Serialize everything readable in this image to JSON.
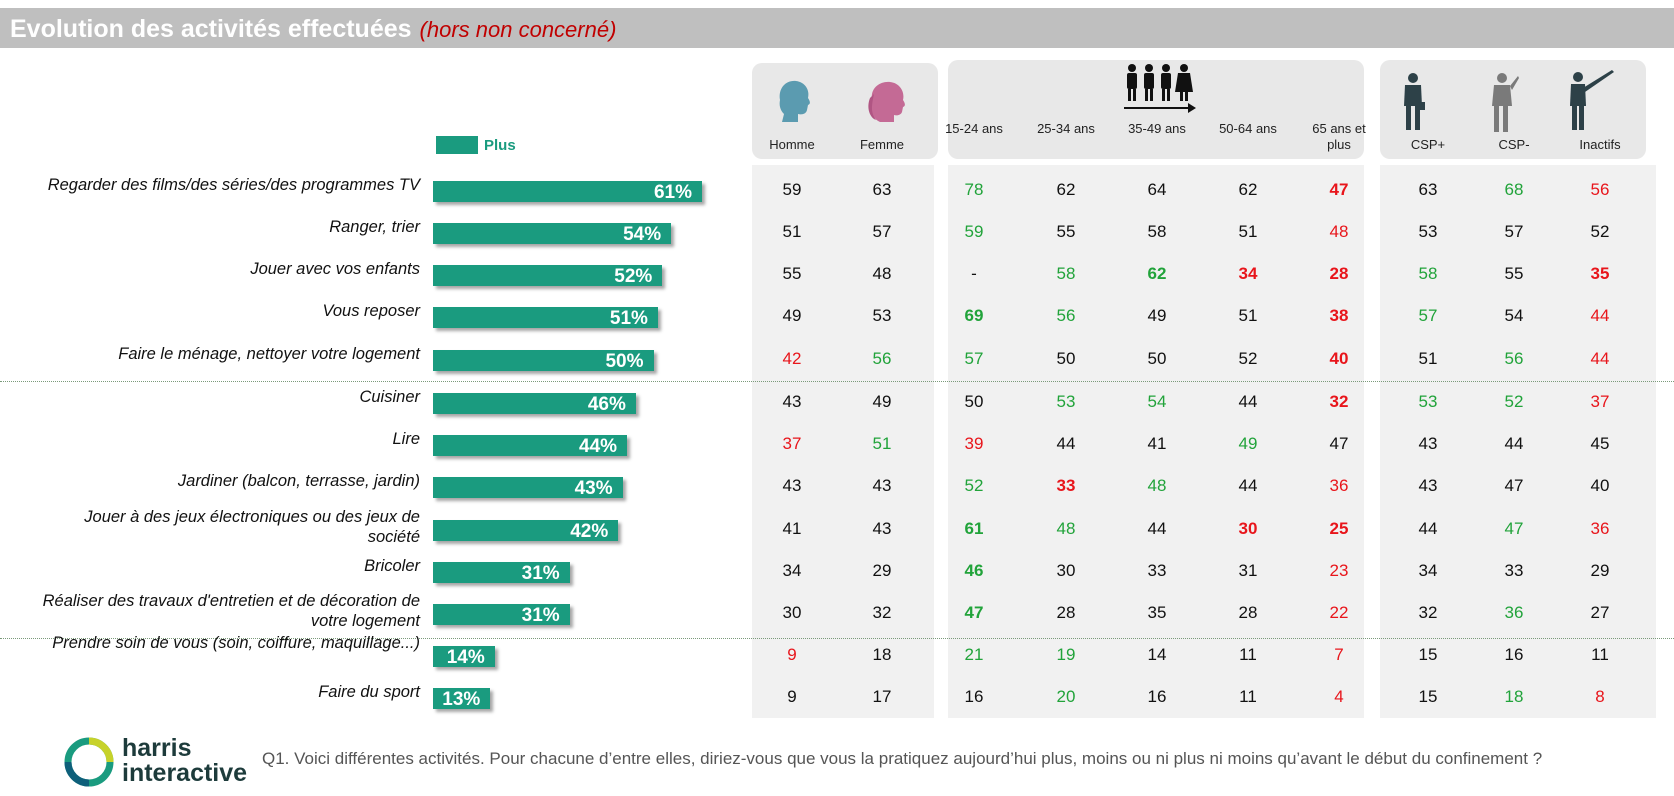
{
  "title": "Evolution des activités effectuées",
  "subtitle": "(hors non concerné)",
  "legend": "Plus",
  "footer": "Q1. Voici différentes activités. Pour chacune d’entre elles, diriez-vous que vous la pratiquez aujourd’hui plus, moins ou ni plus ni moins qu’avant le début du confinement ?",
  "logo": {
    "line1": "harris",
    "line2": "interactive"
  },
  "colors": {
    "bar": "#1a9b7f",
    "red": "#e8151b",
    "green": "#21a33a",
    "black": "#111111"
  },
  "columns": [
    "Homme",
    "Femme",
    "15-24 ans",
    "25-34 ans",
    "35-49 ans",
    "50-64 ans",
    "65 ans et plus",
    "CSP+",
    "CSP-",
    "Inactifs"
  ],
  "column_icons": [
    "man-head-icon",
    "woman-head-icon",
    "age-group-people-icon",
    "csp-plus-businessman-icon",
    "csp-minus-worker-icon",
    "inactive-person-icon"
  ],
  "chart_data": {
    "type": "bar",
    "orientation": "horizontal",
    "unit": "%",
    "series": [
      {
        "name": "Plus",
        "values": [
          61,
          54,
          52,
          51,
          50,
          46,
          44,
          43,
          42,
          31,
          31,
          14,
          13
        ]
      }
    ],
    "categories": [
      "Regarder des films/des séries/des programmes TV",
      "Ranger, trier",
      "Jouer avec vos enfants",
      "Vous reposer",
      "Faire le ménage, nettoyer votre logement",
      "Cuisiner",
      "Lire",
      "Jardiner (balcon, terrasse, jardin)",
      "Jouer à des jeux électroniques ou des jeux de société",
      "Bricoler",
      "Réaliser des travaux d'entretien et de décoration de votre logement",
      "Prendre soin de vous (soin, coiffure, maquillage...)",
      "Faire du sport"
    ],
    "bar_labels": [
      "61%",
      "54%",
      "52%",
      "51%",
      "50%",
      "46%",
      "44%",
      "43%",
      "42%",
      "31%",
      "31%",
      "14%",
      "13%"
    ],
    "table": [
      [
        "59",
        "63",
        "78",
        "62",
        "64",
        "62",
        "47",
        "63",
        "68",
        "56"
      ],
      [
        "51",
        "57",
        "59",
        "55",
        "58",
        "51",
        "48",
        "53",
        "57",
        "52"
      ],
      [
        "55",
        "48",
        "-",
        "58",
        "62",
        "34",
        "28",
        "58",
        "55",
        "35"
      ],
      [
        "49",
        "53",
        "69",
        "56",
        "49",
        "51",
        "38",
        "57",
        "54",
        "44"
      ],
      [
        "42",
        "56",
        "57",
        "50",
        "50",
        "52",
        "40",
        "51",
        "56",
        "44"
      ],
      [
        "43",
        "49",
        "50",
        "53",
        "54",
        "44",
        "32",
        "53",
        "52",
        "37"
      ],
      [
        "37",
        "51",
        "39",
        "44",
        "41",
        "49",
        "47",
        "43",
        "44",
        "45"
      ],
      [
        "43",
        "43",
        "52",
        "33",
        "48",
        "44",
        "36",
        "43",
        "47",
        "40"
      ],
      [
        "41",
        "43",
        "61",
        "48",
        "44",
        "30",
        "25",
        "44",
        "47",
        "36"
      ],
      [
        "34",
        "29",
        "46",
        "30",
        "33",
        "31",
        "23",
        "34",
        "33",
        "29"
      ],
      [
        "30",
        "32",
        "47",
        "28",
        "35",
        "28",
        "22",
        "32",
        "36",
        "27"
      ],
      [
        "9",
        "18",
        "21",
        "19",
        "14",
        "11",
        "7",
        "15",
        "16",
        "11"
      ],
      [
        "9",
        "17",
        "16",
        "20",
        "16",
        "11",
        "4",
        "15",
        "18",
        "8"
      ]
    ],
    "cell_color": [
      [
        "k",
        "k",
        "g",
        "k",
        "k",
        "k",
        "rb",
        "k",
        "g",
        "r"
      ],
      [
        "k",
        "k",
        "g",
        "k",
        "k",
        "k",
        "r",
        "k",
        "k",
        "k"
      ],
      [
        "k",
        "k",
        "k",
        "g",
        "gb",
        "rb",
        "rb",
        "g",
        "k",
        "rb"
      ],
      [
        "k",
        "k",
        "gb",
        "g",
        "k",
        "k",
        "rb",
        "g",
        "k",
        "r"
      ],
      [
        "r",
        "g",
        "g",
        "k",
        "k",
        "k",
        "rb",
        "k",
        "g",
        "r"
      ],
      [
        "k",
        "k",
        "k",
        "g",
        "g",
        "k",
        "rb",
        "g",
        "g",
        "r"
      ],
      [
        "r",
        "g",
        "r",
        "k",
        "k",
        "g",
        "k",
        "k",
        "k",
        "k"
      ],
      [
        "k",
        "k",
        "g",
        "rb",
        "g",
        "k",
        "r",
        "k",
        "k",
        "k"
      ],
      [
        "k",
        "k",
        "gb",
        "g",
        "k",
        "rb",
        "rb",
        "k",
        "g",
        "r"
      ],
      [
        "k",
        "k",
        "gb",
        "k",
        "k",
        "k",
        "r",
        "k",
        "k",
        "k"
      ],
      [
        "k",
        "k",
        "gb",
        "k",
        "k",
        "k",
        "r",
        "k",
        "g",
        "k"
      ],
      [
        "r",
        "k",
        "g",
        "g",
        "k",
        "k",
        "r",
        "k",
        "k",
        "k"
      ],
      [
        "k",
        "k",
        "k",
        "g",
        "k",
        "k",
        "r",
        "k",
        "g",
        "r"
      ]
    ]
  }
}
